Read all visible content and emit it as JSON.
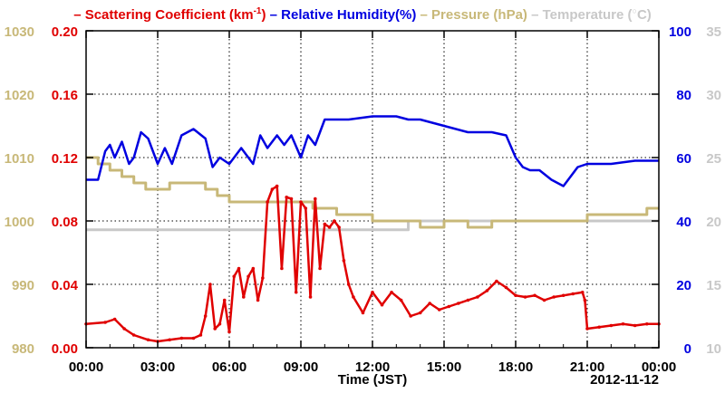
{
  "legend": [
    {
      "symbol": "–",
      "label": "Scattering Coefficient (km",
      "sup": "-1",
      "tail": ")",
      "color": "#e00000"
    },
    {
      "symbol": "–",
      "label": "Relative Humidity(%)",
      "color": "#0000e0"
    },
    {
      "symbol": "–",
      "label": "Pressure (hPa)",
      "color": "#c8b878"
    },
    {
      "symbol": "–",
      "label": "Temperature (",
      "tail": "C)",
      "color": "#c8c8c8"
    }
  ],
  "chart_data": {
    "type": "line",
    "xlabel": "Time (JST)",
    "date_label": "2012-11-12",
    "x_tick_labels": [
      "00:00",
      "03:00",
      "06:00",
      "09:00",
      "12:00",
      "15:00",
      "18:00",
      "21:00",
      "00:00"
    ],
    "xlim_hours": [
      0,
      24
    ],
    "axes": {
      "pressure": {
        "ylim": [
          980,
          1030
        ],
        "ticks": [
          "980",
          "990",
          "1000",
          "1010",
          "1020",
          "1030"
        ],
        "color": "#c8b878"
      },
      "scattering": {
        "ylim": [
          0,
          0.2
        ],
        "ticks": [
          "0.00",
          "0.04",
          "0.08",
          "0.12",
          "0.16",
          "0.20"
        ],
        "color": "#e00000"
      },
      "humidity": {
        "ylim": [
          0,
          100
        ],
        "ticks": [
          "0",
          "20",
          "40",
          "60",
          "80",
          "100"
        ],
        "color": "#0000e0"
      },
      "temperature": {
        "ylim": [
          10,
          35
        ],
        "ticks": [
          "10",
          "15",
          "20",
          "25",
          "30",
          "35"
        ],
        "color": "#c8c8c8"
      }
    },
    "series": [
      {
        "name": "Scattering Coefficient",
        "axis": "scattering",
        "color": "#e00000",
        "markers": true,
        "x": [
          0,
          0.8,
          1.2,
          1.6,
          2,
          2.6,
          3,
          3.5,
          4,
          4.5,
          4.8,
          5.0,
          5.2,
          5.4,
          5.6,
          5.8,
          6.0,
          6.2,
          6.4,
          6.6,
          6.8,
          7.0,
          7.2,
          7.4,
          7.6,
          7.8,
          8.0,
          8.2,
          8.4,
          8.6,
          8.8,
          9.0,
          9.2,
          9.4,
          9.6,
          9.8,
          10.0,
          10.2,
          10.4,
          10.6,
          10.8,
          11.0,
          11.2,
          11.6,
          12.0,
          12.4,
          12.8,
          13.2,
          13.6,
          14.0,
          14.4,
          14.8,
          15.2,
          15.6,
          16.0,
          16.4,
          16.8,
          17.2,
          17.6,
          18.0,
          18.4,
          18.8,
          19.2,
          19.6,
          20.0,
          20.4,
          20.8,
          20.9,
          21.0,
          21.5,
          22,
          22.5,
          23,
          23.5,
          24
        ],
        "values": [
          0.015,
          0.016,
          0.018,
          0.012,
          0.008,
          0.005,
          0.004,
          0.005,
          0.006,
          0.006,
          0.008,
          0.02,
          0.04,
          0.012,
          0.015,
          0.03,
          0.01,
          0.045,
          0.05,
          0.032,
          0.045,
          0.05,
          0.03,
          0.044,
          0.092,
          0.1,
          0.102,
          0.05,
          0.095,
          0.094,
          0.035,
          0.092,
          0.088,
          0.032,
          0.094,
          0.05,
          0.078,
          0.076,
          0.08,
          0.076,
          0.055,
          0.04,
          0.032,
          0.022,
          0.035,
          0.027,
          0.035,
          0.03,
          0.02,
          0.022,
          0.028,
          0.024,
          0.026,
          0.028,
          0.03,
          0.032,
          0.036,
          0.042,
          0.038,
          0.033,
          0.032,
          0.033,
          0.03,
          0.032,
          0.033,
          0.034,
          0.035,
          0.03,
          0.012,
          0.013,
          0.014,
          0.015,
          0.014,
          0.015,
          0.015
        ]
      },
      {
        "name": "Relative Humidity",
        "axis": "humidity",
        "color": "#0000e0",
        "x": [
          0,
          0.5,
          0.8,
          1.0,
          1.2,
          1.5,
          1.8,
          2.0,
          2.3,
          2.6,
          3.0,
          3.3,
          3.6,
          4.0,
          4.5,
          5.0,
          5.3,
          5.6,
          6.0,
          6.5,
          7.0,
          7.3,
          7.6,
          8.0,
          8.3,
          8.6,
          9.0,
          9.3,
          9.6,
          10.0,
          11.0,
          12.0,
          12.5,
          13.0,
          13.5,
          14.0,
          15.0,
          16.0,
          17.0,
          17.6,
          18.0,
          18.3,
          18.6,
          19.0,
          19.5,
          20.0,
          20.3,
          20.6,
          21.0,
          22.0,
          23.0,
          24
        ],
        "values": [
          53,
          53,
          62,
          64,
          60,
          65,
          58,
          60,
          68,
          66,
          58,
          63,
          58,
          67,
          69,
          66,
          57,
          60,
          58,
          63,
          58,
          67,
          63,
          67,
          64,
          67,
          60,
          67,
          64,
          72,
          72,
          73,
          73,
          73,
          72,
          72,
          70,
          68,
          68,
          67,
          60,
          57,
          56,
          56,
          53,
          51,
          54,
          57,
          58,
          58,
          59,
          59
        ]
      },
      {
        "name": "Pressure",
        "axis": "pressure",
        "color": "#c8b878",
        "x": [
          0,
          0.5,
          1.0,
          1.5,
          2.0,
          2.5,
          3.0,
          3.5,
          4.0,
          4.5,
          5.0,
          5.5,
          6.0,
          7.0,
          8.0,
          9.0,
          9.5,
          10.0,
          10.5,
          11.0,
          12.0,
          13.0,
          13.5,
          14.0,
          15.0,
          16.0,
          17.0,
          18.0,
          19.0,
          19.5,
          20.0,
          21.0,
          22.0,
          23.0,
          23.5,
          24
        ],
        "values": [
          1010,
          1009,
          1008,
          1007,
          1006,
          1005,
          1005,
          1006,
          1006,
          1006,
          1005,
          1004,
          1003,
          1003,
          1003,
          1003,
          1002,
          1002,
          1001,
          1001,
          1000,
          1000,
          1000,
          999,
          1000,
          999,
          1000,
          1000,
          1000,
          1000,
          1000,
          1001,
          1001,
          1001,
          1002,
          1002
        ]
      },
      {
        "name": "Temperature",
        "axis": "temperature",
        "color": "#c8c8c8",
        "x": [
          0,
          13.0,
          13.5,
          24
        ],
        "values": [
          19.3,
          19.3,
          20,
          20
        ]
      }
    ]
  }
}
